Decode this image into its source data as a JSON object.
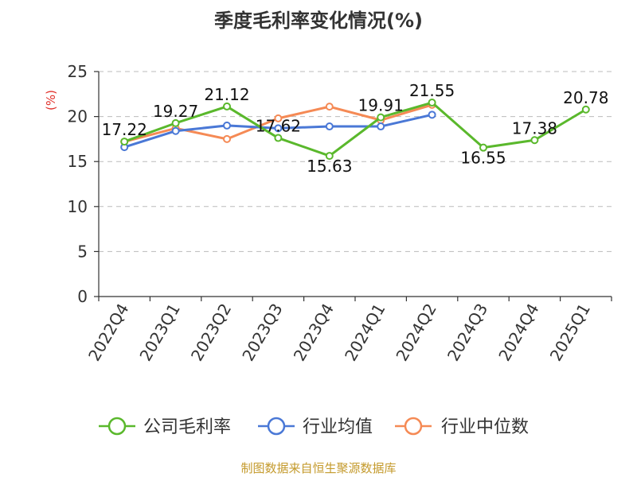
{
  "chart_data": {
    "type": "line",
    "title": "季度毛利率变化情况(%)",
    "ylabel": "(%)",
    "ylim": [
      0,
      25
    ],
    "yticks": [
      "0",
      "5",
      "10",
      "15",
      "20",
      "25"
    ],
    "categories": [
      "2022Q4",
      "2023Q1",
      "2023Q2",
      "2023Q3",
      "2023Q4",
      "2024Q1",
      "2024Q2",
      "2024Q3",
      "2024Q4",
      "2025Q1"
    ],
    "grid": true,
    "legend": "bottom",
    "series": [
      {
        "name": "公司毛利率",
        "color": "#5ab82c",
        "values": [
          17.22,
          19.27,
          21.12,
          17.62,
          15.63,
          19.91,
          21.55,
          16.55,
          17.38,
          20.78
        ],
        "labels": [
          "17.22",
          "19.27",
          "21.12",
          "17.62",
          "15.63",
          "19.91",
          "21.55",
          "16.55",
          "17.38",
          "20.78"
        ]
      },
      {
        "name": "行业均值",
        "color": "#4a78d6",
        "values": [
          16.6,
          18.4,
          19.0,
          18.7,
          18.9,
          18.9,
          20.2,
          null,
          null,
          null
        ]
      },
      {
        "name": "行业中位数",
        "color": "#f58a55",
        "values": [
          17.2,
          18.7,
          17.5,
          19.8,
          21.1,
          19.6,
          21.3,
          null,
          null,
          null
        ]
      }
    ]
  },
  "footer": {
    "source": "制图数据来自恒生聚源数据库"
  }
}
